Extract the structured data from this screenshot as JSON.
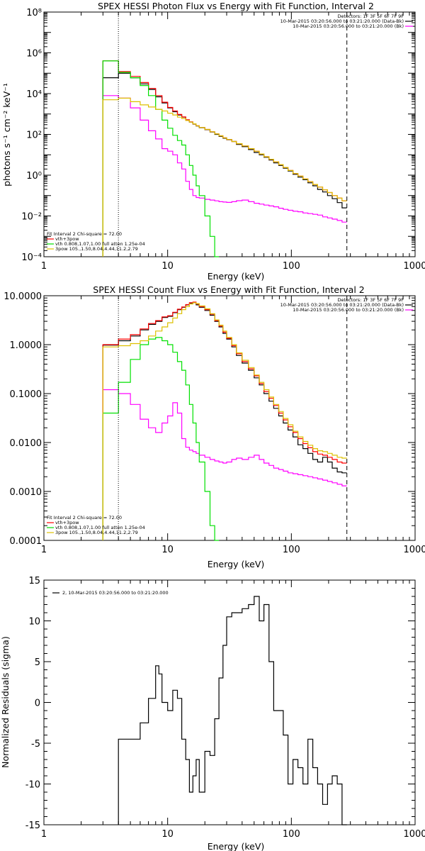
{
  "chart_data": [
    {
      "type": "line",
      "title": "SPEX HESSI Photon Flux vs Energy with Fit Function, Interval 2",
      "xlabel": "Energy (keV)",
      "ylabel": "photons s⁻¹ cm⁻² keV⁻¹",
      "xscale": "log",
      "yscale": "log",
      "xlim": [
        1,
        1000
      ],
      "ylim": [
        0.0001,
        100000000
      ],
      "xticks": [
        "1",
        "10",
        "100",
        "1000"
      ],
      "yticks": [
        "10⁻⁴",
        "10⁻²",
        "10⁰",
        "10²",
        "10⁴",
        "10⁶",
        "10⁸"
      ],
      "legend_top": [
        "Detectors: 1F 3F 5F 6F 7F 9F",
        "10-Mar-2015 03:20:56.000 to 03:21:20.000 (Data-Bk)",
        "10-Mar-2015 03:20:56.000 to 03:21:20.000 (Bk)"
      ],
      "legend_bottom": [
        "Fit Interval 2   Chi-square = 72.00",
        "vth+3pow",
        "vth 0.808,1.07,1.00  full  atten 1.25e-04",
        "3pow 105.,1.50,8.04,4.44,11.2,2.79"
      ],
      "energy_edges": [
        3.0,
        4.0,
        5.0,
        6.0,
        7.0,
        8.0,
        9.0,
        10.0,
        11.0,
        12.0,
        13.0,
        14.0,
        15.0,
        16.0,
        17.0,
        18.0,
        20.0,
        22.0,
        24.0,
        26.0,
        28.0,
        30.0,
        33.0,
        36.0,
        40.0,
        45.0,
        50.0,
        55.0,
        60.0,
        66.0,
        72.0,
        79.0,
        86.0,
        94.0,
        103.0,
        113.0,
        124.0,
        136.0,
        149.0,
        163.0,
        179.0,
        196.0,
        214.0,
        235.0,
        257.0,
        281.0
      ],
      "series": [
        {
          "name": "Data-Bk",
          "color": "#000000",
          "values": [
            60000,
            100000,
            60000,
            30000,
            16000,
            7000,
            3500,
            2000,
            1300,
            900,
            700,
            500,
            400,
            320,
            260,
            210,
            170,
            130,
            100,
            80,
            65,
            55,
            45,
            32,
            25,
            18,
            13,
            10,
            7.5,
            5.5,
            4.0,
            3.0,
            2.2,
            1.6,
            1.1,
            0.8,
            0.6,
            0.42,
            0.3,
            0.2,
            0.15,
            0.1,
            0.07,
            0.045,
            0.025
          ]
        },
        {
          "name": "Bk",
          "color": "#ff00ff",
          "values": [
            8000,
            6000,
            2000,
            500,
            150,
            60,
            20,
            15,
            10,
            4.0,
            2.0,
            0.5,
            0.2,
            0.1,
            0.08,
            0.075,
            0.065,
            0.06,
            0.055,
            0.05,
            0.048,
            0.046,
            0.05,
            0.056,
            0.06,
            0.05,
            0.042,
            0.038,
            0.034,
            0.031,
            0.028,
            0.024,
            0.021,
            0.019,
            0.017,
            0.016,
            0.014,
            0.013,
            0.012,
            0.011,
            0.009,
            0.008,
            0.007,
            0.006,
            0.005
          ]
        },
        {
          "name": "vth+3pow",
          "color": "#ff0000",
          "values": [
            400000,
            120000,
            70000,
            35000,
            18000,
            8000,
            3800,
            2100,
            1400,
            950,
            720,
            520,
            410,
            330,
            265,
            215,
            175,
            135,
            105,
            85,
            68,
            56,
            45,
            35,
            27,
            20,
            15,
            11,
            8.0,
            6.0,
            4.5,
            3.3,
            2.4,
            1.7,
            1.2,
            0.9,
            0.65,
            0.48,
            0.35,
            0.26,
            0.19,
            0.14,
            0.1,
            0.075,
            0.055
          ]
        },
        {
          "name": "vth",
          "color": "#00e000",
          "values": [
            400000,
            110000,
            60000,
            25000,
            8000,
            1700,
            500,
            200,
            90,
            50,
            30,
            10,
            3.0,
            1.0,
            0.3,
            0.1,
            0.01,
            0.001,
            0.0001,
            1e-05
          ]
        },
        {
          "name": "3pow",
          "color": "#ddc000",
          "values": [
            5000,
            6000,
            4000,
            2800,
            2200,
            1700,
            1400,
            1100,
            900,
            700,
            600,
            480,
            400,
            330,
            265,
            215,
            175,
            135,
            105,
            85,
            68,
            56,
            45,
            35,
            27,
            20,
            15,
            11,
            8.0,
            6.0,
            4.5,
            3.3,
            2.4,
            1.7,
            1.2,
            0.9,
            0.65,
            0.48,
            0.35,
            0.26,
            0.19,
            0.14,
            0.1,
            0.075,
            0.055
          ]
        }
      ],
      "vlines": {
        "dotted": 4.0,
        "dashed": 281
      }
    },
    {
      "type": "line",
      "title": "SPEX HESSI Count Flux vs Energy with Fit Function, Interval 2",
      "xlabel": "Energy (keV)",
      "ylabel": "",
      "xscale": "log",
      "yscale": "log",
      "xlim": [
        1,
        1000
      ],
      "ylim": [
        0.0001,
        10
      ],
      "xticks": [
        "1",
        "10",
        "100",
        "1000"
      ],
      "yticks": [
        "0.0001",
        "0.0010",
        "0.0100",
        "0.1000",
        "1.0000",
        "10.0000"
      ],
      "legend_top": [
        "Detectors: 1F 3F 5F 6F 7F 9F",
        "10-Mar-2015 03:20:56.000 to 03:21:20.000 (Data-Bk)",
        "10-Mar-2015 03:20:56.000 to 03:21:20.000 (Bk)"
      ],
      "legend_bottom": [
        "Fit Interval 2   Chi-square = 72.00",
        "vth+3pow",
        "vth 0.808,1.07,1.00  full  atten 1.25e-04",
        "3pow 105.,1.50,8.04,4.44,11.2,2.79"
      ],
      "energy_edges": [
        3.0,
        4.0,
        5.0,
        6.0,
        7.0,
        8.0,
        9.0,
        10.0,
        11.0,
        12.0,
        13.0,
        14.0,
        15.0,
        16.0,
        17.0,
        18.0,
        20.0,
        22.0,
        24.0,
        26.0,
        28.0,
        30.0,
        33.0,
        36.0,
        40.0,
        45.0,
        50.0,
        55.0,
        60.0,
        66.0,
        72.0,
        79.0,
        86.0,
        94.0,
        103.0,
        113.0,
        124.0,
        136.0,
        149.0,
        163.0,
        179.0,
        196.0,
        214.0,
        235.0,
        257.0,
        281.0
      ],
      "series": [
        {
          "name": "Data-Bk",
          "color": "#000000",
          "values": [
            0.98,
            1.2,
            1.5,
            2.0,
            2.6,
            3.0,
            3.6,
            3.8,
            4.5,
            5.2,
            5.8,
            6.5,
            7.0,
            7.2,
            6.5,
            5.8,
            5.0,
            4.0,
            3.0,
            2.3,
            1.7,
            1.3,
            0.9,
            0.6,
            0.42,
            0.3,
            0.21,
            0.15,
            0.1,
            0.07,
            0.05,
            0.035,
            0.025,
            0.018,
            0.013,
            0.009,
            0.0075,
            0.006,
            0.0045,
            0.004,
            0.005,
            0.004,
            0.003,
            0.0025,
            0.0024
          ]
        },
        {
          "name": "Bk",
          "color": "#ff00ff",
          "values": [
            0.12,
            0.1,
            0.06,
            0.03,
            0.02,
            0.016,
            0.025,
            0.035,
            0.065,
            0.04,
            0.012,
            0.008,
            0.007,
            0.0065,
            0.006,
            0.0055,
            0.005,
            0.0045,
            0.0042,
            0.004,
            0.0038,
            0.004,
            0.0045,
            0.0048,
            0.0045,
            0.005,
            0.0055,
            0.0045,
            0.0038,
            0.0034,
            0.003,
            0.0028,
            0.0026,
            0.0024,
            0.0023,
            0.0022,
            0.0021,
            0.002,
            0.0019,
            0.0018,
            0.0017,
            0.0016,
            0.0015,
            0.0014,
            0.0013
          ]
        },
        {
          "name": "vth+3pow",
          "color": "#ff0000",
          "values": [
            1.0,
            1.3,
            1.6,
            2.1,
            2.7,
            3.1,
            3.7,
            3.9,
            4.6,
            5.3,
            5.9,
            6.6,
            7.2,
            7.4,
            6.8,
            6.0,
            5.2,
            4.2,
            3.1,
            2.4,
            1.8,
            1.35,
            0.95,
            0.65,
            0.45,
            0.32,
            0.23,
            0.16,
            0.11,
            0.08,
            0.057,
            0.04,
            0.029,
            0.021,
            0.016,
            0.012,
            0.0095,
            0.0078,
            0.0065,
            0.0058,
            0.0055,
            0.005,
            0.0045,
            0.004,
            0.0038
          ]
        },
        {
          "name": "vth",
          "color": "#00e000",
          "values": [
            0.04,
            0.17,
            0.5,
            1.0,
            1.3,
            1.4,
            1.2,
            1.0,
            0.7,
            0.45,
            0.3,
            0.15,
            0.06,
            0.025,
            0.01,
            0.004,
            0.001,
            0.0002,
            5e-05
          ]
        },
        {
          "name": "3pow",
          "color": "#ddc000",
          "values": [
            0.9,
            0.95,
            1.05,
            1.2,
            1.5,
            1.9,
            2.3,
            2.8,
            3.5,
            4.3,
            5.2,
            6.0,
            6.8,
            7.2,
            6.9,
            6.2,
            5.4,
            4.3,
            3.2,
            2.5,
            1.9,
            1.4,
            1.0,
            0.68,
            0.48,
            0.34,
            0.24,
            0.17,
            0.12,
            0.085,
            0.06,
            0.043,
            0.031,
            0.023,
            0.017,
            0.013,
            0.0105,
            0.0088,
            0.0075,
            0.0068,
            0.0065,
            0.006,
            0.0055,
            0.005,
            0.0048
          ]
        }
      ],
      "vlines": {
        "dotted": 4.0,
        "dashed": 281
      }
    },
    {
      "type": "line",
      "title": "",
      "xlabel": "Energy (keV)",
      "ylabel": "Normalized Residuals (sigma)",
      "xscale": "log",
      "yscale": "linear",
      "xlim": [
        1,
        1000
      ],
      "ylim": [
        -15,
        15
      ],
      "xticks": [
        "1",
        "10",
        "100",
        "1000"
      ],
      "yticks": [
        "-15",
        "-10",
        "-5",
        "0",
        "5",
        "10",
        "15"
      ],
      "legend": [
        "2, 10-Mar-2015 03:20:56.000 to 03:21:20.000"
      ],
      "energy_edges": [
        4.0,
        5.0,
        6.0,
        7.0,
        8.0,
        8.5,
        9.0,
        10.0,
        11.0,
        12.0,
        13.0,
        14.0,
        15.0,
        16.0,
        17.0,
        18.0,
        20.0,
        22.0,
        24.0,
        26.0,
        28.0,
        30.0,
        33.0,
        36.0,
        40.0,
        45.0,
        50.0,
        55.0,
        60.0,
        66.0,
        72.0,
        79.0,
        86.0,
        94.0,
        103.0,
        113.0,
        124.0,
        136.0,
        149.0,
        163.0,
        179.0,
        196.0,
        214.0,
        235.0,
        257.0,
        281.0
      ],
      "values": [
        -4.5,
        -4.5,
        -2.5,
        0.5,
        4.5,
        3.5,
        0.0,
        -1.0,
        1.5,
        0.5,
        -4.5,
        -7.0,
        -11.0,
        -9.0,
        -7.0,
        -11.0,
        -6.0,
        -6.5,
        -2.0,
        3.0,
        7.0,
        10.5,
        11.0,
        11.0,
        11.5,
        12.0,
        13.0,
        10.0,
        12.0,
        5.0,
        -1.0,
        -1.0,
        -4.0,
        -10.0,
        -7.0,
        -8.0,
        -10.0,
        -4.5,
        -8.0,
        -10.0,
        -12.5,
        -10.0,
        -9.0,
        -10.0,
        -15.0
      ]
    }
  ]
}
